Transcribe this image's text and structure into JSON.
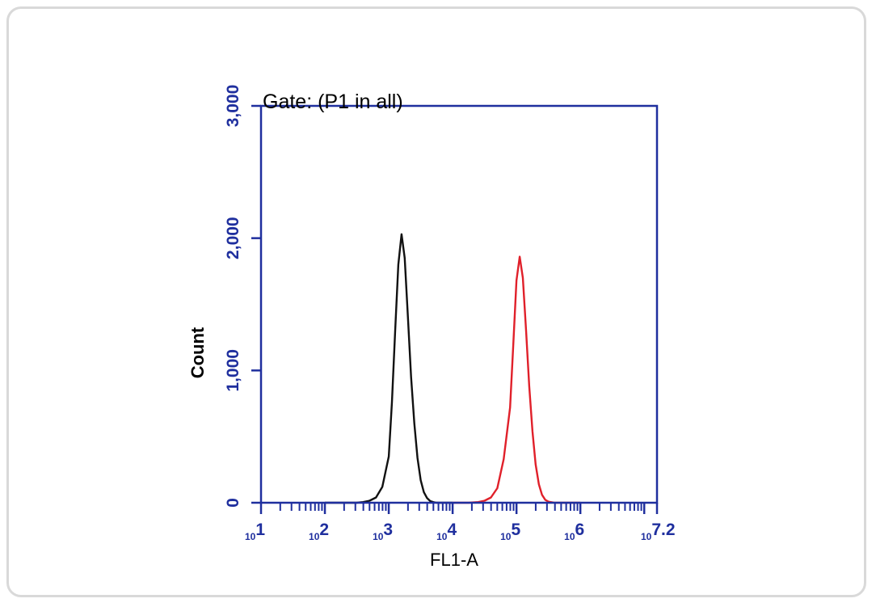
{
  "chart_data": {
    "type": "line",
    "title": "Gate: (P1 in all)",
    "xlabel": "FL1-A",
    "ylabel": "Count",
    "x_scale": "log",
    "xlim": [
      10,
      15848931.92
    ],
    "ylim": [
      0,
      3000
    ],
    "yticks": [
      0,
      1000,
      2000,
      3000
    ],
    "ytick_labels": [
      "0",
      "1,000",
      "2,000",
      "3,000"
    ],
    "xtick_labels": [
      {
        "base": "10",
        "exp": "1"
      },
      {
        "base": "10",
        "exp": "2"
      },
      {
        "base": "10",
        "exp": "3"
      },
      {
        "base": "10",
        "exp": "4"
      },
      {
        "base": "10",
        "exp": "5"
      },
      {
        "base": "10",
        "exp": "6"
      },
      {
        "base": "10",
        "exp": "7.2"
      }
    ],
    "axis_color": "#1f2f9e",
    "grid": false,
    "series": [
      {
        "color": "#111111",
        "x": [
          100,
          316,
          398,
          501,
          631,
          794,
          1000,
          1122,
          1259,
          1413,
          1585,
          1778,
          1995,
          2239,
          2512,
          2818,
          3162,
          3548,
          3981,
          4467,
          5012,
          5623,
          6310,
          7943,
          10000
        ],
        "y": [
          0,
          0,
          5,
          15,
          40,
          120,
          350,
          760,
          1300,
          1800,
          2030,
          1850,
          1400,
          950,
          600,
          340,
          170,
          80,
          35,
          12,
          4,
          0,
          0,
          0,
          0
        ]
      },
      {
        "color": "#e0202a",
        "x": [
          10000,
          17783,
          25119,
          31623,
          39811,
          50119,
          63096,
          79433,
          89125,
          100000,
          112202,
          125893,
          141254,
          158489,
          177828,
          199526,
          223872,
          251189,
          281838,
          316228,
          398107,
          1000000
        ],
        "y": [
          0,
          0,
          5,
          15,
          40,
          110,
          330,
          720,
          1200,
          1680,
          1860,
          1700,
          1300,
          880,
          540,
          290,
          140,
          60,
          22,
          8,
          0,
          0
        ]
      }
    ]
  }
}
